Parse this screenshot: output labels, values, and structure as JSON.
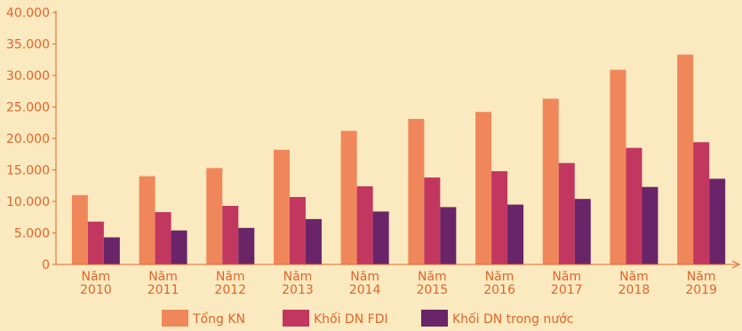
{
  "chart_data": {
    "type": "bar",
    "categories": [
      "Năm 2010",
      "Năm 2011",
      "Năm 2012",
      "Năm 2013",
      "Năm 2014",
      "Năm 2015",
      "Năm 2016",
      "Năm 2017",
      "Năm 2018",
      "Năm 2019"
    ],
    "category_lines": [
      [
        "Năm",
        "2010"
      ],
      [
        "Năm",
        "2011"
      ],
      [
        "Năm",
        "2012"
      ],
      [
        "Năm",
        "2013"
      ],
      [
        "Năm",
        "2014"
      ],
      [
        "Năm",
        "2015"
      ],
      [
        "Năm",
        "2016"
      ],
      [
        "Năm",
        "2017"
      ],
      [
        "Năm",
        "2018"
      ],
      [
        "Năm",
        "2019"
      ]
    ],
    "series": [
      {
        "name": "Tổng KN",
        "color": "#f0875a",
        "values": [
          11000,
          14000,
          15300,
          18200,
          21200,
          23100,
          24200,
          26300,
          30900,
          33300
        ]
      },
      {
        "name": "Khối DN FDI",
        "color": "#c2375f",
        "values": [
          6800,
          8300,
          9300,
          10700,
          12400,
          13800,
          14800,
          16100,
          18500,
          19400
        ]
      },
      {
        "name": "Khối DN trong nước",
        "color": "#6a2468",
        "values": [
          4300,
          5400,
          5800,
          7200,
          8400,
          9100,
          9500,
          10400,
          12300,
          13600
        ]
      }
    ],
    "y_tick_labels": [
      "0",
      "5.000",
      "10.000",
      "15.000",
      "20.000",
      "25.000",
      "30.000",
      "35.000",
      "40.000"
    ],
    "y_tick_values": [
      0,
      5000,
      10000,
      15000,
      20000,
      25000,
      30000,
      35000,
      40000
    ],
    "ylim": [
      0,
      40000
    ],
    "legend_position": "bottom",
    "axis_color": "#e0662c"
  }
}
